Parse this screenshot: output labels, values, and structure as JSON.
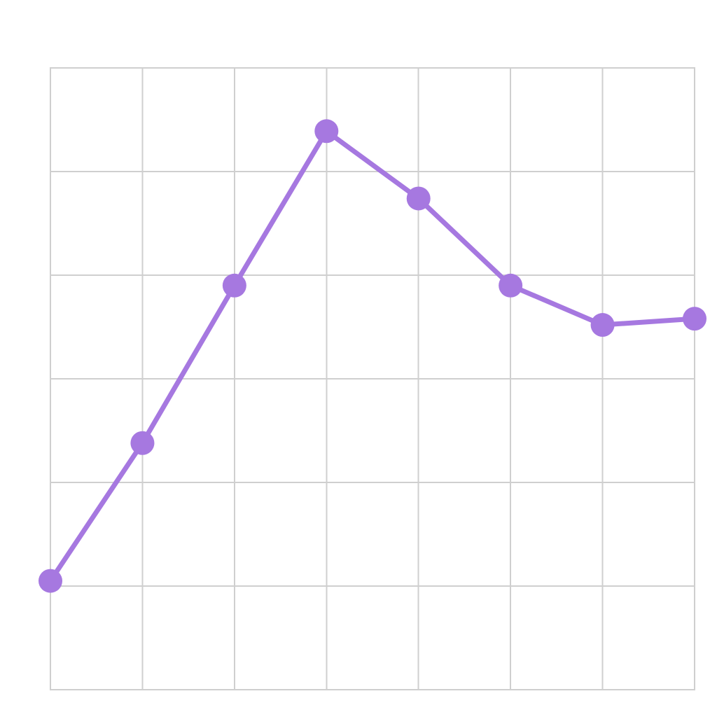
{
  "chart_data": {
    "type": "line",
    "title": "",
    "xlabel": "",
    "ylabel": "",
    "x": [
      0,
      1,
      2,
      3,
      4,
      5,
      6,
      7
    ],
    "xlim": [
      0,
      7
    ],
    "ylim": [
      0,
      6
    ],
    "grid": true,
    "grid_x_lines": 8,
    "grid_y_lines": 7,
    "series": [
      {
        "values": [
          1.05,
          2.38,
          3.9,
          5.39,
          4.74,
          3.9,
          3.52,
          3.58
        ],
        "color": "#a678e0"
      }
    ]
  }
}
